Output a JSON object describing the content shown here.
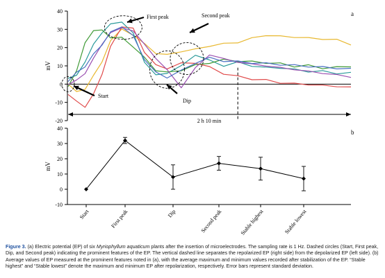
{
  "chart_data": [
    {
      "type": "line",
      "panel_label": "a",
      "ylabel": "mV",
      "ylim": [
        -20,
        40
      ],
      "yticks": [
        "40",
        "30",
        "20",
        "10",
        "0",
        "-10",
        "-20"
      ],
      "xlabel": "2 h 10 min",
      "x_units": "fraction of recording (0–1)",
      "separator_x": 0.6,
      "annotations": {
        "first_peak": "First peak",
        "second_peak": "Second peak",
        "start": "Start",
        "dip": "Dip"
      },
      "series": [
        {
          "color": "#e8b830",
          "x": [
            0,
            0.03,
            0.06,
            0.09,
            0.12,
            0.15,
            0.19,
            0.23,
            0.27,
            0.31,
            0.35,
            0.4,
            0.45,
            0.5,
            0.55,
            0.6,
            0.65,
            0.7,
            0.75,
            0.8,
            0.85,
            0.9,
            0.95,
            1.0
          ],
          "y": [
            0,
            -4,
            -3,
            5,
            12,
            24,
            30,
            27,
            22,
            17,
            16,
            18,
            19,
            21,
            22,
            23,
            25,
            27,
            26,
            26,
            25,
            25,
            24,
            22
          ]
        },
        {
          "color": "#e04a4a",
          "x": [
            0,
            0.03,
            0.06,
            0.09,
            0.12,
            0.15,
            0.19,
            0.23,
            0.27,
            0.31,
            0.35,
            0.4,
            0.45,
            0.5,
            0.55,
            0.6,
            0.65,
            0.7,
            0.75,
            0.8,
            0.85,
            0.9,
            0.95,
            1.0
          ],
          "y": [
            -5,
            -10,
            -12,
            -6,
            6,
            20,
            32,
            30,
            18,
            10,
            9,
            11,
            12,
            9,
            6,
            4,
            3,
            2,
            1,
            0,
            0,
            -1,
            -1,
            -2
          ]
        },
        {
          "color": "#2a9a9a",
          "x": [
            0,
            0.03,
            0.06,
            0.09,
            0.12,
            0.15,
            0.19,
            0.23,
            0.27,
            0.31,
            0.35,
            0.4,
            0.45,
            0.5,
            0.55,
            0.6,
            0.65,
            0.7,
            0.75,
            0.8,
            0.85,
            0.9,
            0.95,
            1.0
          ],
          "y": [
            3,
            5,
            12,
            22,
            28,
            33,
            34,
            28,
            12,
            5,
            6,
            10,
            16,
            13,
            10,
            12,
            10,
            9,
            9,
            8,
            7,
            7,
            6,
            6
          ]
        },
        {
          "color": "#3f9a35",
          "x": [
            0,
            0.03,
            0.06,
            0.09,
            0.12,
            0.15,
            0.19,
            0.23,
            0.27,
            0.31,
            0.35,
            0.4,
            0.45,
            0.5,
            0.55,
            0.6,
            0.65,
            0.7,
            0.75,
            0.8,
            0.85,
            0.9,
            0.95,
            1.0
          ],
          "y": [
            -2,
            8,
            22,
            30,
            29,
            26,
            25,
            21,
            14,
            8,
            6,
            8,
            10,
            12,
            13,
            13,
            12,
            12,
            11,
            10,
            10,
            9,
            9,
            10
          ]
        },
        {
          "color": "#9a4fb0",
          "x": [
            0,
            0.03,
            0.06,
            0.09,
            0.12,
            0.15,
            0.19,
            0.23,
            0.27,
            0.31,
            0.35,
            0.4,
            0.45,
            0.5,
            0.55,
            0.6,
            0.65,
            0.7,
            0.75,
            0.8,
            0.85,
            0.9,
            0.95,
            1.0
          ],
          "y": [
            0,
            2,
            6,
            14,
            22,
            28,
            31,
            29,
            22,
            14,
            8,
            -2,
            9,
            16,
            14,
            12,
            11,
            10,
            9,
            8,
            7,
            6,
            5,
            4
          ]
        },
        {
          "color": "#4a6fc4",
          "x": [
            0,
            0.03,
            0.06,
            0.09,
            0.12,
            0.15,
            0.19,
            0.23,
            0.27,
            0.31,
            0.35,
            0.4,
            0.45,
            0.5,
            0.55,
            0.6,
            0.65,
            0.7,
            0.75,
            0.8,
            0.85,
            0.9,
            0.95,
            1.0
          ],
          "y": [
            2,
            6,
            10,
            16,
            22,
            28,
            32,
            26,
            14,
            6,
            4,
            7,
            12,
            14,
            13,
            12,
            12,
            11,
            11,
            10,
            10,
            9,
            9,
            8
          ]
        }
      ]
    },
    {
      "type": "line",
      "panel_label": "b",
      "ylabel": "mV",
      "ylim": [
        -10,
        40
      ],
      "yticks": [
        "40",
        "30",
        "20",
        "10",
        "0",
        "-10"
      ],
      "categories": [
        "Start",
        "First peak",
        "Dip",
        "Second peak",
        "Stable highest",
        "Stable lowest"
      ],
      "values": [
        0,
        32,
        8,
        17,
        13.5,
        7
      ],
      "errors": [
        0,
        2,
        8,
        4.5,
        7.5,
        8
      ]
    }
  ],
  "caption": {
    "label": "Figure 3.",
    "text_before_species": "(a) Electric potential (EP) of six",
    "species": "Myriophyllum aquaticum",
    "text_after_species": "plants after the insertion of microelectrodes. The sampling rate is 1 Hz. Dashed circles (Start, First peak, Dip, and Second peak) indicating the prominent features of the EP. The vertical dashed line separates the repolarized EP (right side) from the depolarized EP (left side). (b) Average values of EP measured at the prominent features noted in (a), with the average maximum and minimum values recorded after stabilization of the EP. “Stable highest” and “Stable lowest” denote the maximum and minimum EP after repolarization, respectively. Error bars represent standard deviation."
  }
}
